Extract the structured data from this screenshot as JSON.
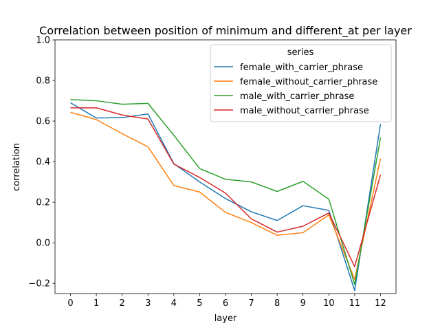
{
  "chart_data": {
    "type": "line",
    "title": "Correlation between position of minimum and different_at per layer",
    "xlabel": "layer",
    "ylabel": "correlation",
    "x": [
      0,
      1,
      2,
      3,
      4,
      5,
      6,
      7,
      8,
      9,
      10,
      11,
      12
    ],
    "x_ticks": [
      "0",
      "1",
      "2",
      "3",
      "4",
      "5",
      "6",
      "7",
      "8",
      "9",
      "10",
      "11",
      "12"
    ],
    "y_ticks": [
      "−0.2",
      "0.0",
      "0.2",
      "0.4",
      "0.6",
      "0.8",
      "1.0"
    ],
    "y_tick_values": [
      -0.2,
      0.0,
      0.2,
      0.4,
      0.6,
      0.8,
      1.0
    ],
    "xlim": [
      -0.6,
      12.6
    ],
    "ylim": [
      -0.25,
      1.0
    ],
    "grid": false,
    "legend_title": "series",
    "legend_position": "top-right",
    "series": [
      {
        "name": "female_with_carrier_phrase",
        "color": "#1f77b4",
        "values": [
          0.69,
          0.615,
          0.617,
          0.635,
          0.39,
          0.3,
          0.218,
          0.153,
          0.11,
          0.183,
          0.16,
          -0.235,
          0.585
        ]
      },
      {
        "name": "female_without_carrier_phrase",
        "color": "#ff7f0e",
        "values": [
          0.643,
          0.607,
          0.538,
          0.473,
          0.282,
          0.25,
          0.15,
          0.1,
          0.037,
          0.05,
          0.138,
          -0.18,
          0.415
        ]
      },
      {
        "name": "male_with_carrier_phrase",
        "color": "#2ca02c",
        "values": [
          0.706,
          0.7,
          0.683,
          0.687,
          0.53,
          0.366,
          0.313,
          0.3,
          0.253,
          0.303,
          0.215,
          -0.205,
          0.518
        ]
      },
      {
        "name": "male_without_carrier_phrase",
        "color": "#d62728",
        "values": [
          0.665,
          0.665,
          0.63,
          0.61,
          0.388,
          0.322,
          0.245,
          0.118,
          0.053,
          0.082,
          0.147,
          -0.117,
          0.335
        ]
      }
    ]
  }
}
